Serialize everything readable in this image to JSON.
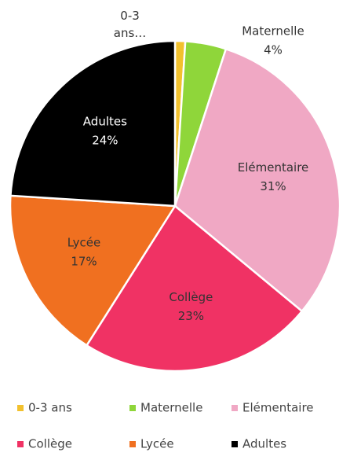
{
  "chart_data": {
    "type": "pie",
    "categories": [
      "0-3 ans",
      "Maternelle",
      "Elémentaire",
      "Collège",
      "Lycée",
      "Adultes"
    ],
    "values": [
      1,
      4,
      31,
      23,
      17,
      24
    ],
    "value_labels": [
      null,
      "4%",
      "31%",
      "23%",
      "17%",
      "24%"
    ],
    "slice_labels": [
      "0-3 ans…",
      "Maternelle",
      "Elémentaire",
      "Collège",
      "Lycée",
      "Adultes"
    ],
    "colors": [
      "#f2c12e",
      "#8fd63a",
      "#f0a8c4",
      "#f03264",
      "#f07020",
      "#000000"
    ],
    "legend": "bottom"
  }
}
